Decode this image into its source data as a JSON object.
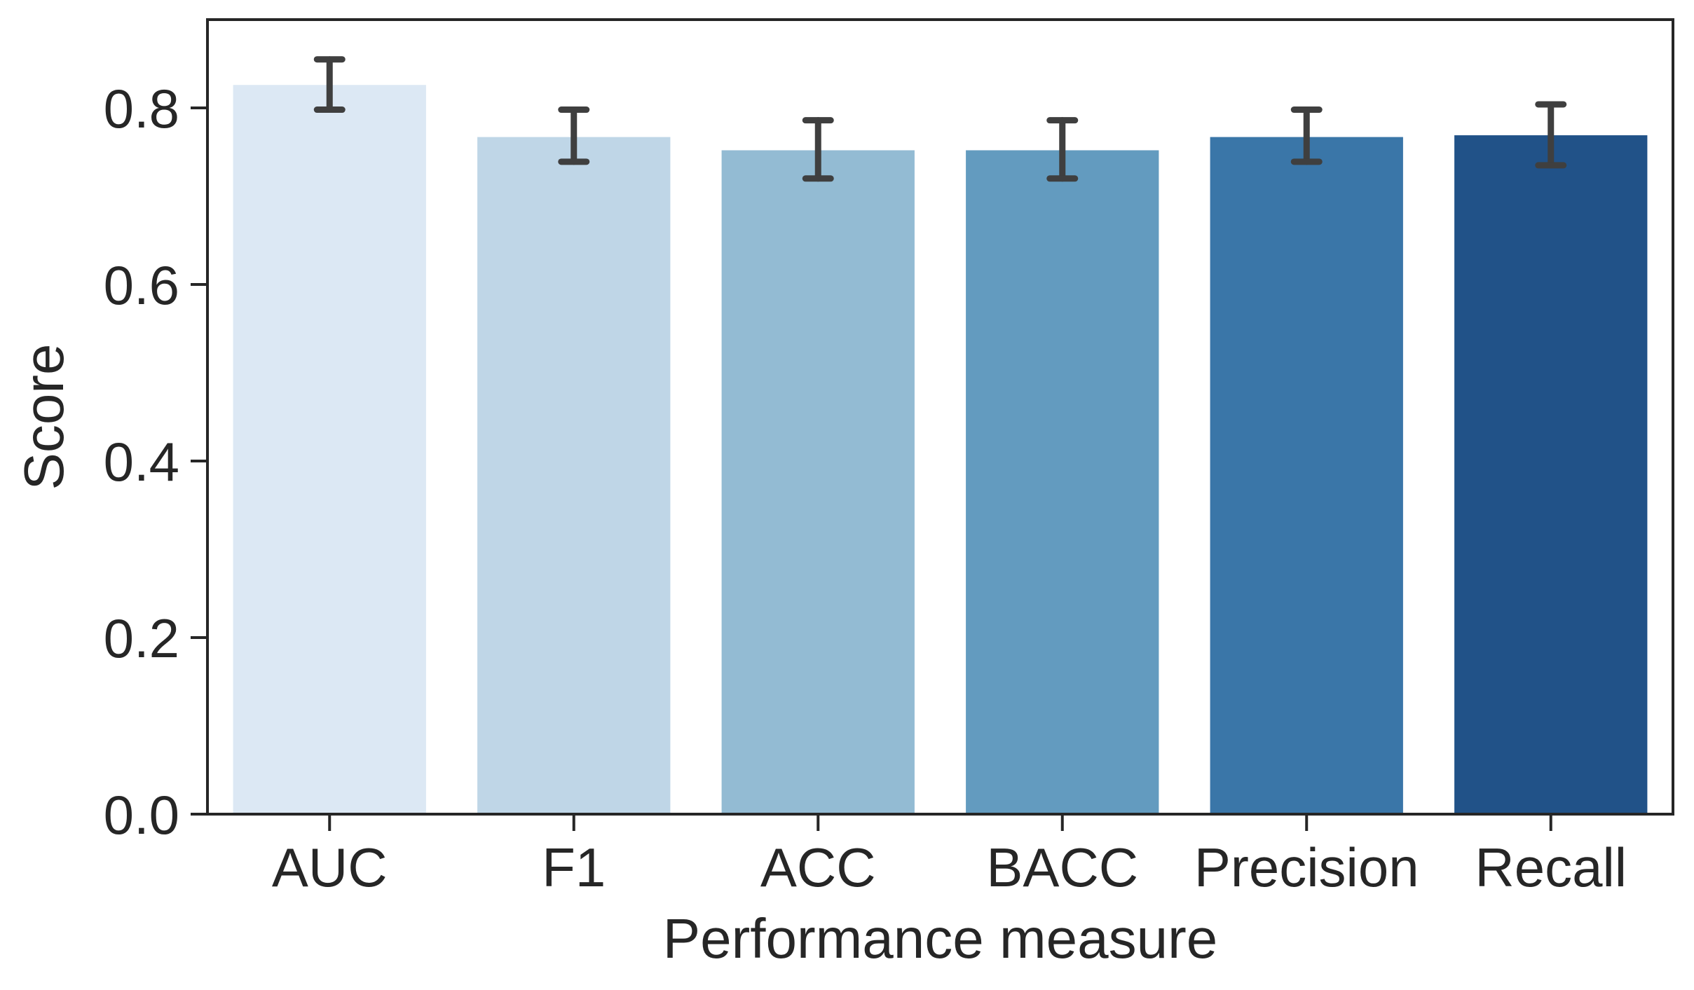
{
  "chart_data": {
    "type": "bar",
    "categories": [
      "AUC",
      "F1",
      "ACC",
      "BACC",
      "Precision",
      "Recall"
    ],
    "values": [
      0.826,
      0.767,
      0.752,
      0.752,
      0.767,
      0.769
    ],
    "error_low": [
      0.798,
      0.739,
      0.72,
      0.72,
      0.739,
      0.735
    ],
    "error_high": [
      0.855,
      0.798,
      0.786,
      0.786,
      0.798,
      0.804
    ],
    "colors": [
      "#dce8f4",
      "#bfd6e7",
      "#93bbd3",
      "#639bbf",
      "#3a76a8",
      "#215288"
    ],
    "error_color": "#3f3f3f",
    "xlabel": "Performance measure",
    "ylabel": "Score",
    "ylim": [
      0,
      0.9
    ],
    "yticks": [
      0.0,
      0.2,
      0.4,
      0.6,
      0.8
    ],
    "ytick_labels": [
      "0.0",
      "0.2",
      "0.4",
      "0.6",
      "0.8"
    ],
    "grid": false,
    "legend": "none"
  }
}
